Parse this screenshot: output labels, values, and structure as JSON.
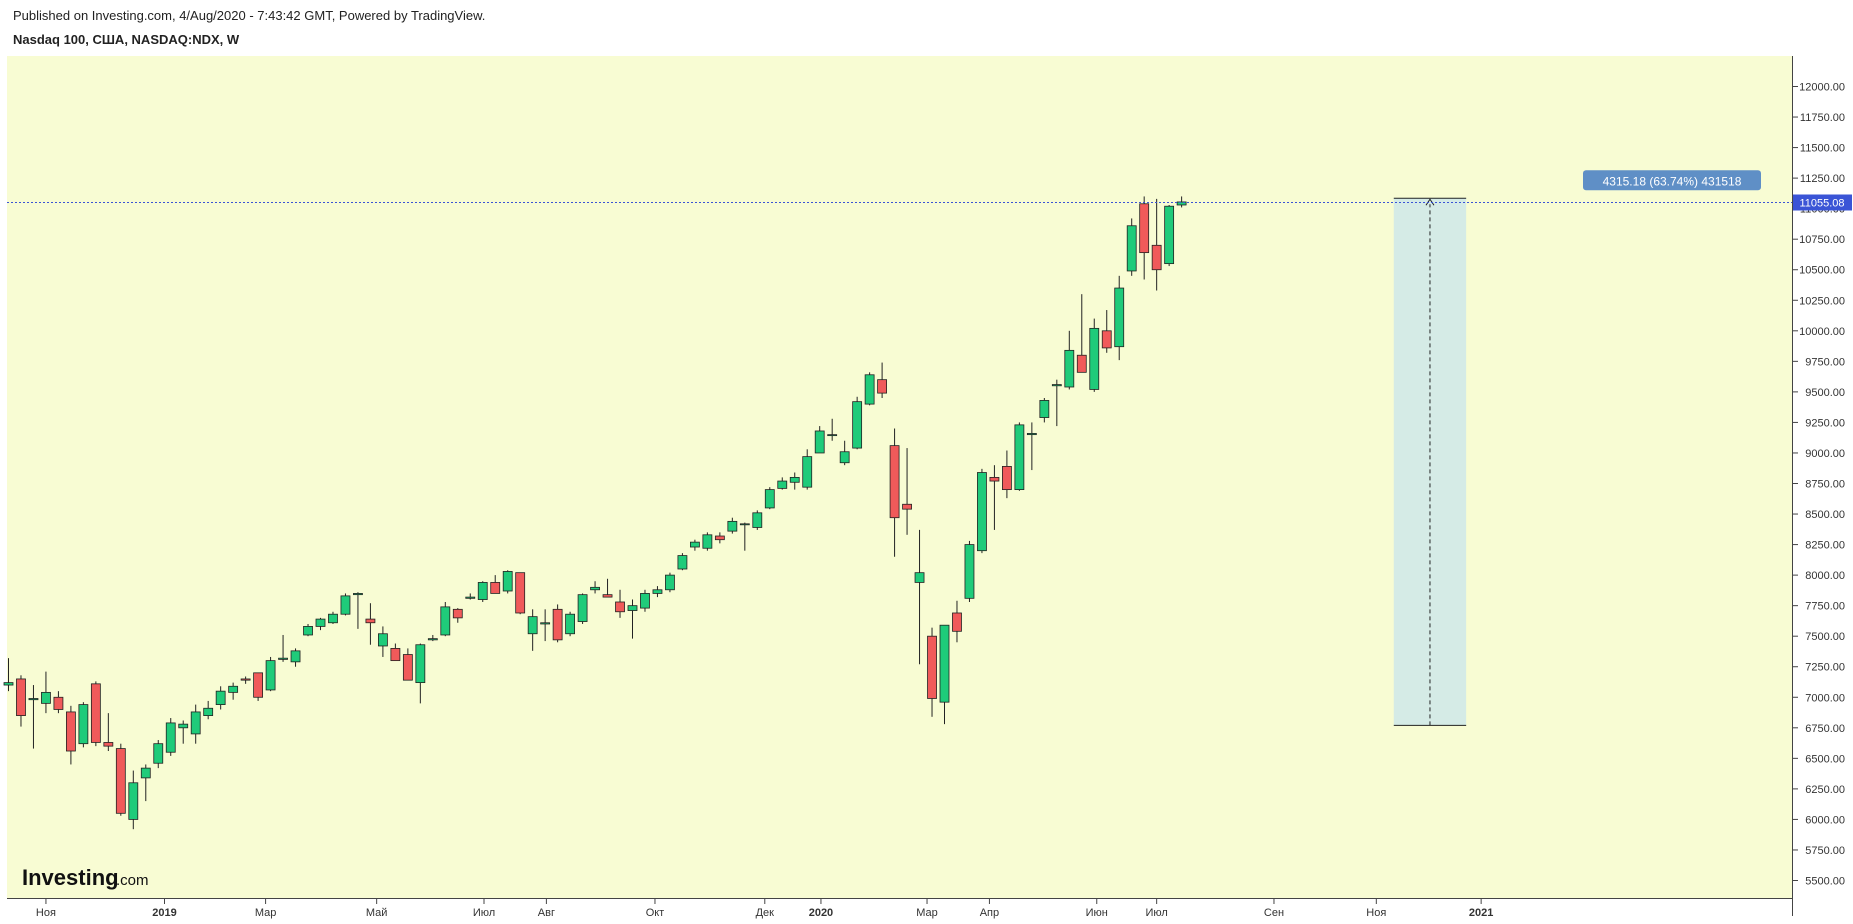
{
  "header": {
    "published": "Published on Investing.com, 4/Aug/2020 - 7:43:42 GMT, Powered by TradingView.",
    "title": "Nasdaq 100, США, NASDAQ:NDX, W"
  },
  "logo": {
    "main": "Investing",
    "suffix": ".com"
  },
  "colors": {
    "background": "#f8fcd3",
    "up": "#1fcb7a",
    "down": "#f05a5a",
    "wick": "#222222",
    "price_line": "#3a54d6",
    "price_badge": "#3a54d6",
    "measure_fill": "#d5ebe6",
    "measure_label": "#5f8fc6"
  },
  "chart_data": {
    "type": "candlestick",
    "interval": "W",
    "ylim": [
      5400,
      12250
    ],
    "yticks": [
      5500,
      5750,
      6000,
      6250,
      6500,
      6750,
      7000,
      7250,
      7500,
      7750,
      8000,
      8250,
      8500,
      8750,
      9000,
      9250,
      9500,
      9750,
      10000,
      10250,
      10500,
      10750,
      11000,
      11250,
      11500,
      11750,
      12000
    ],
    "xticks": [
      {
        "label": "Ноя",
        "bold": false,
        "week": 3.0
      },
      {
        "label": "2019",
        "bold": true,
        "week": 12.5
      },
      {
        "label": "Мар",
        "bold": false,
        "week": 20.6
      },
      {
        "label": "Май",
        "bold": false,
        "week": 29.5
      },
      {
        "label": "Июл",
        "bold": false,
        "week": 38.1
      },
      {
        "label": "Авг",
        "bold": false,
        "week": 43.1
      },
      {
        "label": "Окт",
        "bold": false,
        "week": 51.8
      },
      {
        "label": "Дек",
        "bold": false,
        "week": 60.6
      },
      {
        "label": "2020",
        "bold": true,
        "week": 65.1
      },
      {
        "label": "Мар",
        "bold": false,
        "week": 73.6
      },
      {
        "label": "Апр",
        "bold": false,
        "week": 78.6
      },
      {
        "label": "Июн",
        "bold": false,
        "week": 87.2
      },
      {
        "label": "Июл",
        "bold": false,
        "week": 92.0
      },
      {
        "label": "Сен",
        "bold": false,
        "week": 101.4
      },
      {
        "label": "Ноя",
        "bold": false,
        "week": 109.6
      },
      {
        "label": "2021",
        "bold": true,
        "week": 118.0
      }
    ],
    "candles": [
      {
        "o": 7100,
        "h": 7320,
        "l": 7050,
        "c": 7120
      },
      {
        "o": 7150,
        "h": 7180,
        "l": 6760,
        "c": 6850
      },
      {
        "o": 6980,
        "h": 7100,
        "l": 6580,
        "c": 6990
      },
      {
        "o": 6950,
        "h": 7210,
        "l": 6870,
        "c": 7040
      },
      {
        "o": 7000,
        "h": 7050,
        "l": 6870,
        "c": 6900
      },
      {
        "o": 6880,
        "h": 6930,
        "l": 6450,
        "c": 6560
      },
      {
        "o": 6620,
        "h": 6960,
        "l": 6590,
        "c": 6940
      },
      {
        "o": 7110,
        "h": 7130,
        "l": 6600,
        "c": 6630
      },
      {
        "o": 6630,
        "h": 6870,
        "l": 6560,
        "c": 6600
      },
      {
        "o": 6580,
        "h": 6620,
        "l": 6030,
        "c": 6050
      },
      {
        "o": 6000,
        "h": 6400,
        "l": 5920,
        "c": 6300
      },
      {
        "o": 6340,
        "h": 6450,
        "l": 6150,
        "c": 6420
      },
      {
        "o": 6460,
        "h": 6650,
        "l": 6420,
        "c": 6620
      },
      {
        "o": 6550,
        "h": 6830,
        "l": 6520,
        "c": 6790
      },
      {
        "o": 6750,
        "h": 6810,
        "l": 6620,
        "c": 6780
      },
      {
        "o": 6700,
        "h": 6940,
        "l": 6620,
        "c": 6880
      },
      {
        "o": 6850,
        "h": 6970,
        "l": 6820,
        "c": 6910
      },
      {
        "o": 6940,
        "h": 7090,
        "l": 6900,
        "c": 7050
      },
      {
        "o": 7040,
        "h": 7120,
        "l": 6980,
        "c": 7090
      },
      {
        "o": 7150,
        "h": 7170,
        "l": 7110,
        "c": 7140
      },
      {
        "o": 7200,
        "h": 7200,
        "l": 6970,
        "c": 7000
      },
      {
        "o": 7060,
        "h": 7330,
        "l": 7050,
        "c": 7300
      },
      {
        "o": 7310,
        "h": 7510,
        "l": 7290,
        "c": 7320
      },
      {
        "o": 7290,
        "h": 7400,
        "l": 7250,
        "c": 7380
      },
      {
        "o": 7510,
        "h": 7600,
        "l": 7500,
        "c": 7580
      },
      {
        "o": 7580,
        "h": 7650,
        "l": 7550,
        "c": 7640
      },
      {
        "o": 7610,
        "h": 7700,
        "l": 7600,
        "c": 7680
      },
      {
        "o": 7680,
        "h": 7850,
        "l": 7670,
        "c": 7830
      },
      {
        "o": 7840,
        "h": 7860,
        "l": 7560,
        "c": 7850
      },
      {
        "o": 7640,
        "h": 7770,
        "l": 7430,
        "c": 7610
      },
      {
        "o": 7420,
        "h": 7580,
        "l": 7330,
        "c": 7520
      },
      {
        "o": 7400,
        "h": 7440,
        "l": 7300,
        "c": 7300
      },
      {
        "o": 7350,
        "h": 7400,
        "l": 7150,
        "c": 7140
      },
      {
        "o": 7120,
        "h": 7440,
        "l": 6950,
        "c": 7430
      },
      {
        "o": 7470,
        "h": 7510,
        "l": 7460,
        "c": 7480
      },
      {
        "o": 7510,
        "h": 7780,
        "l": 7500,
        "c": 7740
      },
      {
        "o": 7720,
        "h": 7730,
        "l": 7610,
        "c": 7650
      },
      {
        "o": 7810,
        "h": 7850,
        "l": 7800,
        "c": 7820
      },
      {
        "o": 7800,
        "h": 7950,
        "l": 7780,
        "c": 7940
      },
      {
        "o": 7940,
        "h": 8000,
        "l": 7860,
        "c": 7850
      },
      {
        "o": 7870,
        "h": 8040,
        "l": 7850,
        "c": 8030
      },
      {
        "o": 8020,
        "h": 8020,
        "l": 7680,
        "c": 7690
      },
      {
        "o": 7520,
        "h": 7720,
        "l": 7380,
        "c": 7660
      },
      {
        "o": 7600,
        "h": 7720,
        "l": 7460,
        "c": 7610
      },
      {
        "o": 7720,
        "h": 7760,
        "l": 7450,
        "c": 7470
      },
      {
        "o": 7520,
        "h": 7700,
        "l": 7500,
        "c": 7680
      },
      {
        "o": 7620,
        "h": 7850,
        "l": 7600,
        "c": 7840
      },
      {
        "o": 7880,
        "h": 7950,
        "l": 7850,
        "c": 7900
      },
      {
        "o": 7840,
        "h": 7970,
        "l": 7820,
        "c": 7820
      },
      {
        "o": 7780,
        "h": 7880,
        "l": 7650,
        "c": 7700
      },
      {
        "o": 7710,
        "h": 7800,
        "l": 7480,
        "c": 7750
      },
      {
        "o": 7730,
        "h": 7880,
        "l": 7700,
        "c": 7850
      },
      {
        "o": 7850,
        "h": 7910,
        "l": 7820,
        "c": 7880
      },
      {
        "o": 7880,
        "h": 8020,
        "l": 7860,
        "c": 8000
      },
      {
        "o": 8050,
        "h": 8180,
        "l": 8040,
        "c": 8160
      },
      {
        "o": 8230,
        "h": 8290,
        "l": 8200,
        "c": 8270
      },
      {
        "o": 8220,
        "h": 8350,
        "l": 8200,
        "c": 8330
      },
      {
        "o": 8320,
        "h": 8350,
        "l": 8260,
        "c": 8290
      },
      {
        "o": 8360,
        "h": 8470,
        "l": 8340,
        "c": 8440
      },
      {
        "o": 8420,
        "h": 8430,
        "l": 8200,
        "c": 8420
      },
      {
        "o": 8390,
        "h": 8530,
        "l": 8370,
        "c": 8510
      },
      {
        "o": 8550,
        "h": 8720,
        "l": 8540,
        "c": 8700
      },
      {
        "o": 8710,
        "h": 8800,
        "l": 8700,
        "c": 8770
      },
      {
        "o": 8760,
        "h": 8840,
        "l": 8700,
        "c": 8800
      },
      {
        "o": 8720,
        "h": 9030,
        "l": 8700,
        "c": 8970
      },
      {
        "o": 9000,
        "h": 9220,
        "l": 9000,
        "c": 9180
      },
      {
        "o": 9150,
        "h": 9280,
        "l": 9100,
        "c": 9150
      },
      {
        "o": 8920,
        "h": 9100,
        "l": 8900,
        "c": 9010
      },
      {
        "o": 9040,
        "h": 9460,
        "l": 9030,
        "c": 9420
      },
      {
        "o": 9400,
        "h": 9660,
        "l": 9390,
        "c": 9640
      },
      {
        "o": 9600,
        "h": 9740,
        "l": 9450,
        "c": 9490
      },
      {
        "o": 9060,
        "h": 9200,
        "l": 8150,
        "c": 8470
      },
      {
        "o": 8580,
        "h": 9040,
        "l": 8330,
        "c": 8540
      },
      {
        "o": 7940,
        "h": 8370,
        "l": 7270,
        "c": 8020
      },
      {
        "o": 7500,
        "h": 7570,
        "l": 6840,
        "c": 6990
      },
      {
        "o": 6960,
        "h": 7590,
        "l": 6780,
        "c": 7590
      },
      {
        "o": 7690,
        "h": 7790,
        "l": 7450,
        "c": 7540
      },
      {
        "o": 7810,
        "h": 8280,
        "l": 7780,
        "c": 8250
      },
      {
        "o": 8200,
        "h": 8870,
        "l": 8180,
        "c": 8840
      },
      {
        "o": 8800,
        "h": 8900,
        "l": 8370,
        "c": 8770
      },
      {
        "o": 8890,
        "h": 9020,
        "l": 8630,
        "c": 8700
      },
      {
        "o": 8700,
        "h": 9250,
        "l": 8690,
        "c": 9230
      },
      {
        "o": 9150,
        "h": 9250,
        "l": 8860,
        "c": 9160
      },
      {
        "o": 9290,
        "h": 9450,
        "l": 9250,
        "c": 9430
      },
      {
        "o": 9550,
        "h": 9600,
        "l": 9220,
        "c": 9560
      },
      {
        "o": 9540,
        "h": 10000,
        "l": 9520,
        "c": 9840
      },
      {
        "o": 9800,
        "h": 10300,
        "l": 9700,
        "c": 9660
      },
      {
        "o": 9520,
        "h": 10100,
        "l": 9500,
        "c": 10020
      },
      {
        "o": 10000,
        "h": 10170,
        "l": 9820,
        "c": 9860
      },
      {
        "o": 9870,
        "h": 10450,
        "l": 9760,
        "c": 10350
      },
      {
        "o": 10490,
        "h": 10920,
        "l": 10450,
        "c": 10860
      },
      {
        "o": 11040,
        "h": 11100,
        "l": 10420,
        "c": 10640
      },
      {
        "o": 10700,
        "h": 11080,
        "l": 10330,
        "c": 10500
      },
      {
        "o": 10550,
        "h": 11030,
        "l": 10530,
        "c": 11020
      },
      {
        "o": 11030,
        "h": 11100,
        "l": 11010,
        "c": 11055
      }
    ],
    "last_price": 11055.08,
    "last_price_label": "11055.08",
    "measure": {
      "label": "4315.18 (63.74%) 431518",
      "from_price": 6770,
      "to_price": 11085,
      "start_week": 111.0,
      "end_week": 116.8
    }
  }
}
